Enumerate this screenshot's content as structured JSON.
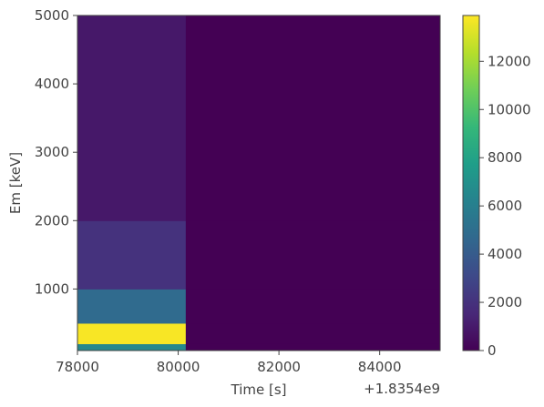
{
  "chart_data": {
    "type": "heatmap",
    "xlabel": "Time [s]",
    "ylabel": "Em [keV]",
    "x_offset_label": "+1.8354e9",
    "x_offset": 1835400000,
    "xlim": [
      78000,
      85200
    ],
    "ylim": [
      100,
      5000
    ],
    "x_ticks": [
      78000,
      80000,
      82000,
      84000
    ],
    "x_tick_labels": [
      "78000",
      "80000",
      "82000",
      "84000"
    ],
    "y_ticks": [
      1000,
      2000,
      3000,
      4000,
      5000
    ],
    "y_tick_labels": [
      "1000",
      "2000",
      "3000",
      "4000",
      "5000"
    ],
    "colorbar": {
      "colormap": "viridis",
      "range": [
        0,
        13900
      ],
      "ticks": [
        0,
        2000,
        4000,
        6000,
        8000,
        10000,
        12000
      ],
      "tick_labels": [
        "0",
        "2000",
        "4000",
        "6000",
        "8000",
        "10000",
        "12000"
      ]
    },
    "time_bins": [
      78000,
      80150,
      85200
    ],
    "energy_bins": [
      100,
      200,
      500,
      1000,
      2000,
      5000
    ],
    "values": [
      [
        6500,
        0
      ],
      [
        13800,
        0
      ],
      [
        4800,
        0
      ],
      [
        2000,
        0
      ],
      [
        900,
        0
      ]
    ]
  }
}
